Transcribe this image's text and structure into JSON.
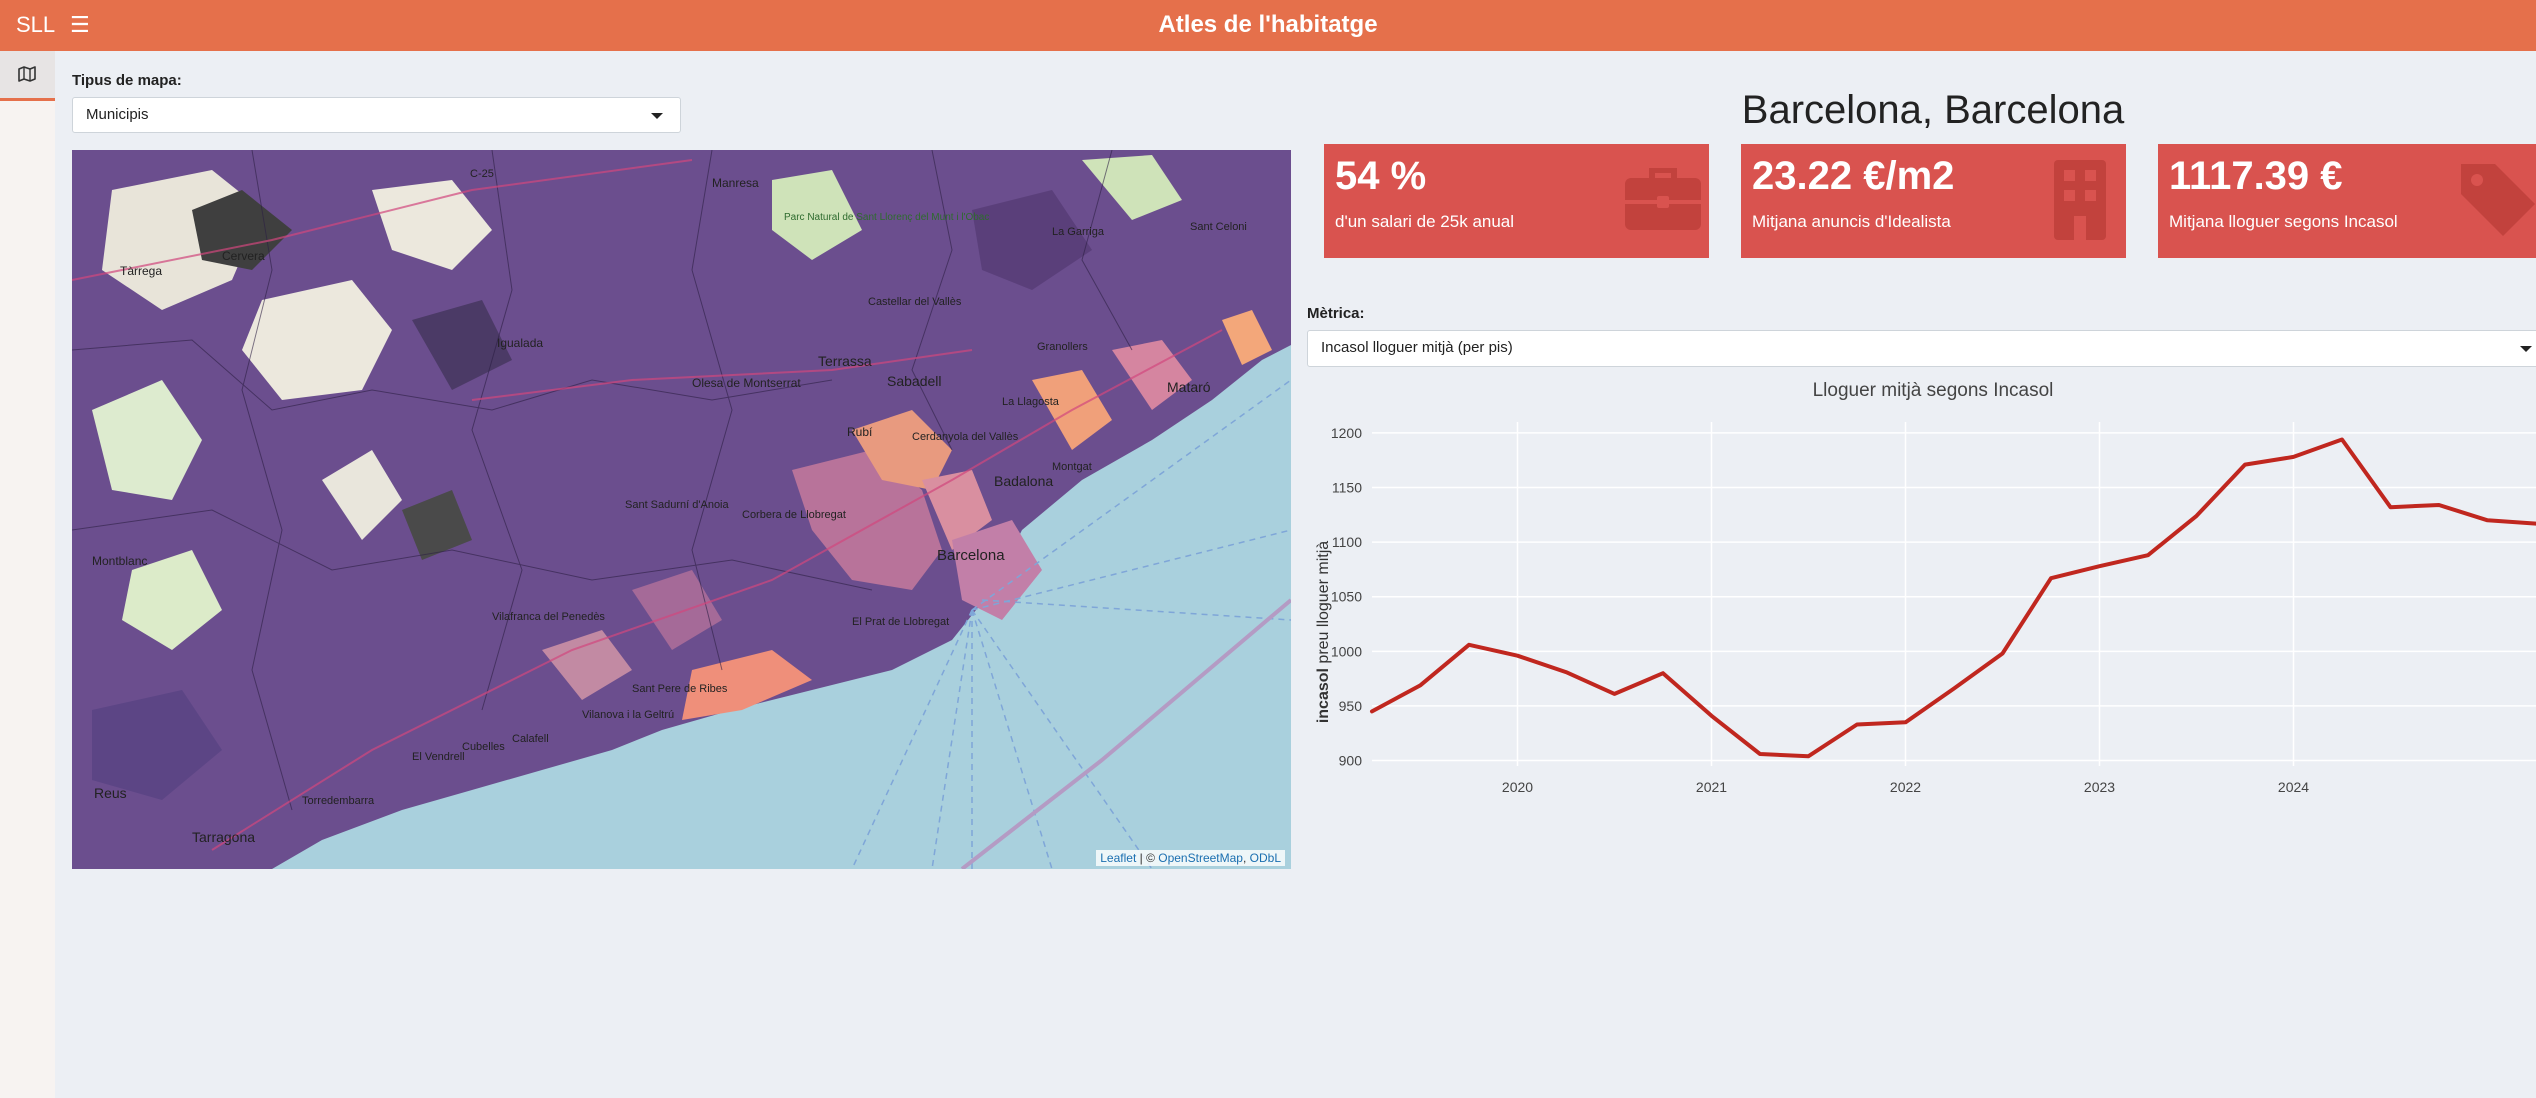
{
  "navbar": {
    "brand": "SLL",
    "menu_icon": "hamburger-icon",
    "title": "Atles de l'habitatge"
  },
  "sidebar": {
    "items": [
      {
        "icon": "map-icon",
        "active": true
      }
    ]
  },
  "map_type": {
    "label": "Tipus de mapa:",
    "selected": "Municipis"
  },
  "map": {
    "labels": [
      "Tàrrega",
      "Cervera",
      "Igualada",
      "Manresa",
      "Terrassa",
      "Sabadell",
      "Castellar del Vallès",
      "Olesa de Montserrat",
      "Rubí",
      "Badalona",
      "Barcelona",
      "Mataró",
      "Montblanc",
      "Reus",
      "Tarragona",
      "Vilanova i la Geltrú",
      "Sant Pere de Ribes",
      "Cubelles",
      "Calafell",
      "Torredembarra",
      "Corbera de Llobregat",
      "El Prat de Llobregat",
      "Sant Sadurní d'Anoia",
      "C-25",
      "Parc Natural de Sant Llorenç del Munt i l'Obac",
      "La Garriga",
      "Sant Celoni",
      "Granollers",
      "Cerdanyola del Vallès",
      "La Llagosta",
      "Montgat",
      "El Vendrell",
      "Vilafranca del Penedès"
    ],
    "attribution": {
      "leaflet": "Leaflet",
      "sep": " | © ",
      "osm": "OpenStreetMap",
      "comma": ", ",
      "odbl": "ODbL"
    }
  },
  "location_title": "Barcelona, Barcelona",
  "value_boxes": [
    {
      "value": "54 %",
      "subtitle": "d'un salari de 25k anual",
      "icon": "briefcase-icon"
    },
    {
      "value": "23.22 €/m2",
      "subtitle": "Mitjana anuncis d'Idealista",
      "icon": "building-icon"
    },
    {
      "value": "1117.39 €",
      "subtitle": "Mitjana lloguer segons Incasol",
      "icon": "tag-icon"
    }
  ],
  "metric": {
    "label": "Mètrica:",
    "selected": "Incasol lloguer mitjà (per pis)"
  },
  "colors": {
    "accent": "#e5704b",
    "box": "#d9534f",
    "line": "#c0271f"
  },
  "chart_data": {
    "type": "line",
    "title": "Lloguer mitjà segons Incasol",
    "ylabel_bold": "incasol",
    "ylabel_rest": " preu lloguer mitjà",
    "xlabel": "",
    "ylim": [
      895,
      1210
    ],
    "xlim": [
      2019.25,
      2025.25
    ],
    "yticks": [
      900,
      950,
      1000,
      1050,
      1100,
      1150,
      1200
    ],
    "xticks": [
      2020,
      2021,
      2022,
      2023,
      2024
    ],
    "series": [
      {
        "name": "Incasol lloguer mitjà",
        "x": [
          2019.25,
          2019.5,
          2019.75,
          2020.0,
          2020.25,
          2020.5,
          2020.75,
          2021.0,
          2021.25,
          2021.5,
          2021.75,
          2022.0,
          2022.25,
          2022.5,
          2022.75,
          2023.0,
          2023.25,
          2023.5,
          2023.75,
          2024.0,
          2024.25,
          2024.5,
          2024.75,
          2025.0,
          2025.25
        ],
        "values": [
          945,
          969,
          1006,
          996,
          981,
          961,
          980,
          941,
          906,
          904,
          933,
          935,
          966,
          998,
          1067,
          1078,
          1088,
          1124,
          1171,
          1178,
          1194,
          1132,
          1134,
          1120,
          1117
        ]
      }
    ]
  }
}
